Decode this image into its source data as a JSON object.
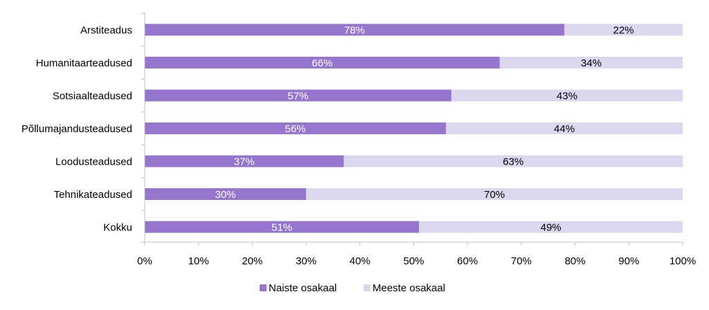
{
  "chart_data": {
    "type": "bar",
    "orientation": "horizontal",
    "stacked": true,
    "categories": [
      "Arstiteadus",
      "Humanitaarteadused",
      "Sotsiaalteadused",
      "Põllumajandusteadused",
      "Loodusteadused",
      "Tehnikateadused",
      "Kokku"
    ],
    "series": [
      {
        "name": "Naiste osakaal",
        "values": [
          78,
          66,
          57,
          56,
          37,
          30,
          51
        ],
        "labels": [
          "78%",
          "66%",
          "57%",
          "56%",
          "37%",
          "30%",
          "51%"
        ],
        "color": "#9575cd",
        "label_color": "#ffffff"
      },
      {
        "name": "Meeste osakaal",
        "values": [
          22,
          34,
          43,
          44,
          63,
          70,
          49
        ],
        "labels": [
          "22%",
          "34%",
          "43%",
          "44%",
          "63%",
          "70%",
          "49%"
        ],
        "color": "#dcd6ee",
        "label_color": "#000000"
      }
    ],
    "x_ticks": [
      "0%",
      "10%",
      "20%",
      "30%",
      "40%",
      "50%",
      "60%",
      "70%",
      "80%",
      "90%",
      "100%"
    ],
    "xlim": [
      0,
      100
    ],
    "grid": false,
    "legend_position": "bottom",
    "title": "",
    "xlabel": "",
    "ylabel": ""
  }
}
